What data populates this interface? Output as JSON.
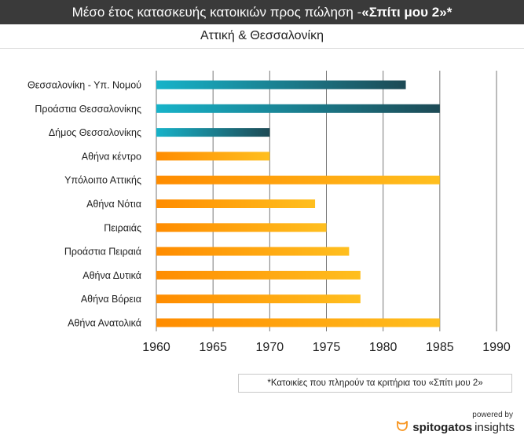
{
  "header": {
    "title_main": "Μέσο έτος κατασκευής κατοικιών προς πώληση - ",
    "title_highlight": "«Σπίτι μου 2»*",
    "subtitle": "Αττική & Θεσσαλονίκη"
  },
  "note": "*Κατοικίες που πληρούν τα κριτήρια του «Σπίτι μου 2»",
  "footer": {
    "powered_by": "powered by",
    "brand_bold": "spitogatos",
    "brand_light": "insights",
    "brand_icon": "cat-logo-icon"
  },
  "colors": {
    "thessaloniki_start": "#17b3c9",
    "thessaloniki_end": "#1d4a55",
    "attica_start": "#ff8c00",
    "attica_end": "#ffbf1f",
    "grid": "#777777",
    "brand_orange": "#f7941d"
  },
  "chart_data": {
    "type": "bar",
    "orientation": "horizontal",
    "categories": [
      "Θεσσαλονίκη - Υπ. Νομού",
      "Προάστια Θεσσαλονίκης",
      "Δήμος Θεσσαλονίκης",
      "Αθήνα κέντρο",
      "Υπόλοιπο Αττικής",
      "Αθήνα Νότια",
      "Πειραιάς",
      "Προάστια Πειραιά",
      "Αθήνα Δυτικά",
      "Αθήνα Βόρεια",
      "Αθήνα Ανατολικά"
    ],
    "values": [
      1982,
      1985,
      1970,
      1970,
      1985,
      1974,
      1975,
      1977,
      1978,
      1978,
      1985
    ],
    "groups": [
      "thessaloniki",
      "thessaloniki",
      "thessaloniki",
      "attica",
      "attica",
      "attica",
      "attica",
      "attica",
      "attica",
      "attica",
      "attica"
    ],
    "xlim": [
      1960,
      1990
    ],
    "xticks": [
      1960,
      1965,
      1970,
      1975,
      1980,
      1985,
      1990
    ],
    "grid": "vertical"
  }
}
